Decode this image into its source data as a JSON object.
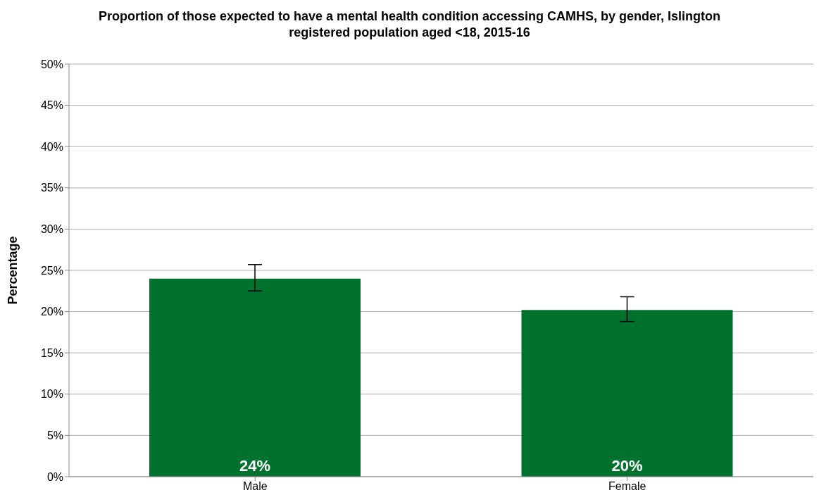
{
  "chart_data": {
    "type": "bar",
    "title": "Proportion of those expected to have a mental health condition accessing CAMHS, by gender,  Islington registered population aged <18, 2015-16",
    "ylabel": "Percentage",
    "categories": [
      "Male",
      "Female"
    ],
    "values": [
      24,
      20.2
    ],
    "color": "#00722d",
    "errors": [
      [
        22.5,
        25.7
      ],
      [
        18.8,
        21.8
      ]
    ],
    "value_labels": [
      "24%",
      "20%"
    ],
    "ylim": [
      0,
      50
    ],
    "yticks": [
      {
        "value": 0,
        "label": "0%"
      },
      {
        "value": 5,
        "label": "5%"
      },
      {
        "value": 10,
        "label": "10%"
      },
      {
        "value": 15,
        "label": "15%"
      },
      {
        "value": 20,
        "label": "20%"
      },
      {
        "value": 25,
        "label": "25%"
      },
      {
        "value": 30,
        "label": "30%"
      },
      {
        "value": 35,
        "label": "35%"
      },
      {
        "value": 40,
        "label": "40%"
      },
      {
        "value": 45,
        "label": "45%"
      },
      {
        "value": 50,
        "label": "50%"
      }
    ],
    "grid": "y",
    "legend": false
  }
}
